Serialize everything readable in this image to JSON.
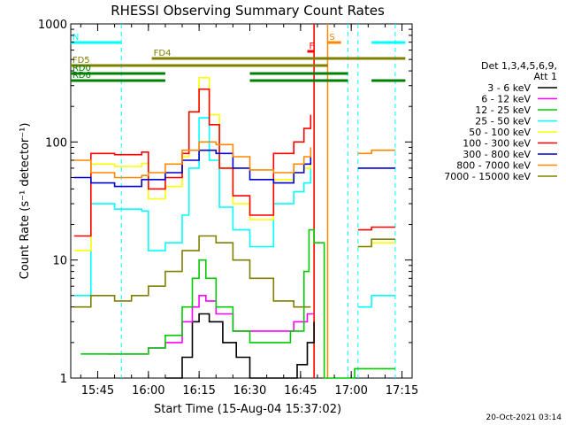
{
  "chart_data": {
    "type": "line",
    "title": "RHESSI Observing Summary Count Rates",
    "xlabel": "Start Time (15-Aug-04 15:37:02)",
    "ylabel": "Count Rate (s⁻¹ detector⁻¹)",
    "footer_date": "20-Oct-2021 03:14",
    "y_scale": "log",
    "ylim": [
      1,
      1000
    ],
    "xlim": [
      "15:37:02",
      "17:18:00"
    ],
    "y_ticks": [
      {
        "value": 1,
        "label": "1"
      },
      {
        "value": 10,
        "label": "10"
      },
      {
        "value": 100,
        "label": "100"
      },
      {
        "value": 1000,
        "label": "1000"
      }
    ],
    "x_ticks": [
      {
        "value": "15:45",
        "label": "15:45"
      },
      {
        "value": "16:00",
        "label": "16:00"
      },
      {
        "value": "16:15",
        "label": "16:15"
      },
      {
        "value": "16:30",
        "label": "16:30"
      },
      {
        "value": "16:45",
        "label": "16:45"
      },
      {
        "value": "17:00",
        "label": "17:00"
      },
      {
        "value": "17:15",
        "label": "17:15"
      }
    ],
    "legend": {
      "placement": "right",
      "header": [
        "Det 1,3,4,5,6,9,",
        "Att 1"
      ]
    },
    "series": [
      {
        "name": "3 - 6 keV",
        "color": "#000000",
        "x": [
          "15:38",
          "15:50",
          "16:05",
          "16:10",
          "16:13",
          "16:15",
          "16:18",
          "16:22",
          "16:26",
          "16:30",
          "16:38",
          "16:44",
          "16:47",
          "16:49"
        ],
        "values": [
          null,
          null,
          1,
          1.5,
          3,
          3.5,
          3,
          2,
          1.5,
          1,
          1,
          1.3,
          2,
          3
        ]
      },
      {
        "name": "6 - 12 keV",
        "color": "#ff00ff",
        "x": [
          "15:48",
          "15:55",
          "16:00",
          "16:05",
          "16:10",
          "16:13",
          "16:15",
          "16:17",
          "16:20",
          "16:25",
          "16:30",
          "16:37",
          "16:43",
          "16:47",
          "16:49"
        ],
        "values": [
          1.6,
          1.6,
          1.8,
          2,
          3,
          4,
          5,
          4.5,
          3.5,
          2.5,
          2.5,
          2.5,
          3,
          3.5,
          3.5
        ]
      },
      {
        "name": "12 - 25 keV",
        "color": "#00cc00",
        "x": [
          "15:40",
          "15:45",
          "15:55",
          "16:00",
          "16:05",
          "16:10",
          "16:13",
          "16:15",
          "16:17",
          "16:20",
          "16:25",
          "16:30",
          "16:37",
          "16:42",
          "16:46",
          "16:47.5",
          "16:49",
          "16:52",
          "17:01",
          "17:06",
          "17:13"
        ],
        "values": [
          1.6,
          1.6,
          1.6,
          1.8,
          2.3,
          4,
          7,
          10,
          7,
          4,
          2.5,
          2,
          2,
          2.5,
          8,
          18,
          14,
          1,
          1.2,
          1.2,
          1.2
        ]
      },
      {
        "name": "25 - 50 keV",
        "color": "#00ffff",
        "x": [
          "15:38",
          "15:42",
          "15:43",
          "15:50",
          "15:58",
          "16:00",
          "16:05",
          "16:10",
          "16:12",
          "16:15",
          "16:18",
          "16:21",
          "16:25",
          "16:30",
          "16:37",
          "16:43",
          "16:46",
          "16:48",
          "16:49",
          "17:02",
          "17:06",
          "17:13"
        ],
        "values": [
          5,
          5,
          30,
          27,
          26,
          12,
          14,
          24,
          60,
          160,
          70,
          28,
          18,
          13,
          30,
          38,
          45,
          60,
          null,
          4,
          5,
          5
        ]
      },
      {
        "name": "50 - 100 keV",
        "color": "#ffff00",
        "x": [
          "15:38",
          "15:42",
          "15:43",
          "15:50",
          "15:58",
          "16:00",
          "16:05",
          "16:10",
          "16:12",
          "16:15",
          "16:18",
          "16:21",
          "16:25",
          "16:30",
          "16:37",
          "16:43",
          "16:46",
          "16:48",
          "16:49",
          "17:02",
          "17:06",
          "17:13"
        ],
        "values": [
          12,
          12,
          65,
          62,
          66,
          33,
          42,
          75,
          180,
          350,
          170,
          60,
          30,
          22,
          48,
          55,
          60,
          70,
          null,
          13,
          14,
          14
        ]
      },
      {
        "name": "100 - 300 keV",
        "color": "#ff0000",
        "x": [
          "15:38",
          "15:42",
          "15:43",
          "15:50",
          "15:58",
          "16:00",
          "16:05",
          "16:10",
          "16:12",
          "16:15",
          "16:18",
          "16:21",
          "16:25",
          "16:30",
          "16:37",
          "16:43",
          "16:46",
          "16:48",
          "16:49",
          "17:02",
          "17:06",
          "17:13"
        ],
        "values": [
          16,
          16,
          80,
          78,
          82,
          40,
          50,
          80,
          180,
          280,
          140,
          60,
          35,
          24,
          80,
          100,
          130,
          170,
          null,
          18,
          19,
          19
        ]
      },
      {
        "name": "300 - 800 keV",
        "color": "#0000cc",
        "x": [
          "15:38",
          "15:42",
          "15:43",
          "15:50",
          "15:58",
          "16:00",
          "16:05",
          "16:10",
          "16:15",
          "16:20",
          "16:25",
          "16:30",
          "16:37",
          "16:43",
          "16:46",
          "16:48",
          "16:49",
          "17:02",
          "17:06",
          "17:13"
        ],
        "values": [
          50,
          50,
          45,
          42,
          48,
          48,
          55,
          70,
          85,
          80,
          60,
          48,
          45,
          55,
          65,
          75,
          null,
          60,
          60,
          60
        ]
      },
      {
        "name": "800 - 7000 keV",
        "color": "#ff8800",
        "x": [
          "15:38",
          "15:42",
          "15:43",
          "15:50",
          "15:58",
          "16:00",
          "16:05",
          "16:10",
          "16:15",
          "16:20",
          "16:25",
          "16:30",
          "16:37",
          "16:43",
          "16:46",
          "16:48",
          "16:49",
          "17:02",
          "17:06",
          "17:13"
        ],
        "values": [
          70,
          70,
          55,
          50,
          52,
          55,
          65,
          85,
          100,
          95,
          75,
          58,
          55,
          65,
          75,
          90,
          null,
          80,
          85,
          85
        ]
      },
      {
        "name": "7000 - 15000 keV",
        "color": "#808000",
        "x": [
          "15:38",
          "15:42",
          "15:43",
          "15:50",
          "15:55",
          "16:00",
          "16:05",
          "16:10",
          "16:15",
          "16:20",
          "16:25",
          "16:30",
          "16:37",
          "16:43",
          "16:46",
          "16:48",
          "16:49",
          "17:02",
          "17:06",
          "17:13"
        ],
        "values": [
          4,
          4,
          5,
          4.5,
          5,
          6,
          8,
          12,
          16,
          14,
          10,
          7,
          4.5,
          4,
          4,
          4,
          null,
          13,
          15,
          15
        ]
      }
    ],
    "annotations": [
      {
        "label": "N",
        "color": "#00ffff",
        "start": "15:37",
        "end": "15:52",
        "level": "top"
      },
      {
        "label": "N",
        "color": "#00ffff",
        "start": "17:06",
        "end": "17:16",
        "level": "top"
      },
      {
        "label": "S",
        "color": "#ff8800",
        "start": "16:53",
        "end": "16:57",
        "level": "top"
      },
      {
        "label": "F",
        "color": "#ff0000",
        "start": "16:47",
        "end": "16:49",
        "level": "second"
      },
      {
        "label": "FD4",
        "color": "#808000",
        "start": "16:01",
        "end": "17:16",
        "level": "third"
      },
      {
        "label": "FD5",
        "color": "#808000",
        "start": "15:37",
        "end": "16:53",
        "level": "fourth"
      },
      {
        "label": "RD0",
        "color": "#008000",
        "start": "15:37",
        "end": "16:05",
        "level": "fifth"
      },
      {
        "label": "RD0",
        "color": "#008000",
        "start": "16:30",
        "end": "16:59",
        "level": "fifth"
      },
      {
        "label": "RD6",
        "color": "#008000",
        "start": "15:37",
        "end": "16:05",
        "level": "sixth"
      },
      {
        "label": "RD6",
        "color": "#008000",
        "start": "16:30",
        "end": "16:59",
        "level": "sixth"
      },
      {
        "label": "RD6",
        "color": "#008000",
        "start": "17:06",
        "end": "17:16",
        "level": "sixth"
      }
    ],
    "markers": [
      {
        "color": "#00ffff",
        "time": "15:52",
        "style": "dashed"
      },
      {
        "color": "#00ffff",
        "time": "16:59",
        "style": "dashed"
      },
      {
        "color": "#00ffff",
        "time": "17:02",
        "style": "dashed"
      },
      {
        "color": "#00ffff",
        "time": "17:13",
        "style": "dashed"
      },
      {
        "color": "#ff8800",
        "time": "16:49",
        "style": "solid"
      },
      {
        "color": "#ff8800",
        "time": "16:53",
        "style": "solid"
      },
      {
        "color": "#ff0000",
        "time": "16:49",
        "style": "solid"
      }
    ]
  }
}
